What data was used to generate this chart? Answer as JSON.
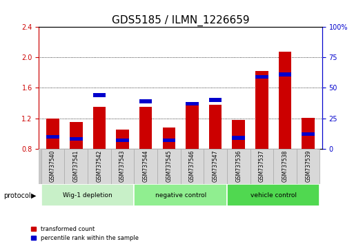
{
  "title": "GDS5185 / ILMN_1226659",
  "samples": [
    "GSM737540",
    "GSM737541",
    "GSM737542",
    "GSM737543",
    "GSM737544",
    "GSM737545",
    "GSM737546",
    "GSM737547",
    "GSM737536",
    "GSM737537",
    "GSM737538",
    "GSM737539"
  ],
  "red_values": [
    1.2,
    1.15,
    1.35,
    1.05,
    1.35,
    1.08,
    1.38,
    1.38,
    1.18,
    1.82,
    2.07,
    1.21
  ],
  "blue_percentiles": [
    10,
    8,
    44,
    7,
    39,
    7,
    37,
    40,
    9,
    59,
    61,
    12
  ],
  "ylim_left": [
    0.8,
    2.4
  ],
  "ylim_right": [
    0,
    100
  ],
  "yticks_left": [
    0.8,
    1.2,
    1.6,
    2.0,
    2.4
  ],
  "yticks_right": [
    0,
    25,
    50,
    75,
    100
  ],
  "ytick_labels_right": [
    "0",
    "25",
    "50",
    "75",
    "100%"
  ],
  "groups": [
    {
      "label": "Wig-1 depletion",
      "indices": [
        0,
        1,
        2,
        3
      ],
      "color": "#c8f0c8"
    },
    {
      "label": "negative control",
      "indices": [
        4,
        5,
        6,
        7
      ],
      "color": "#90ee90"
    },
    {
      "label": "vehicle control",
      "indices": [
        8,
        9,
        10,
        11
      ],
      "color": "#50d850"
    }
  ],
  "bar_width": 0.55,
  "red_color": "#cc0000",
  "blue_color": "#0000cc",
  "grid_color": "black",
  "base_value": 0.8,
  "legend_items": [
    {
      "label": "transformed count",
      "color": "#cc0000"
    },
    {
      "label": "percentile rank within the sample",
      "color": "#0000cc"
    }
  ],
  "protocol_label": "protocol",
  "title_fontsize": 11,
  "tick_fontsize": 7,
  "label_fontsize": 8,
  "sample_box_color": "#d8d8d8",
  "sample_box_edge": "#aaaaaa"
}
